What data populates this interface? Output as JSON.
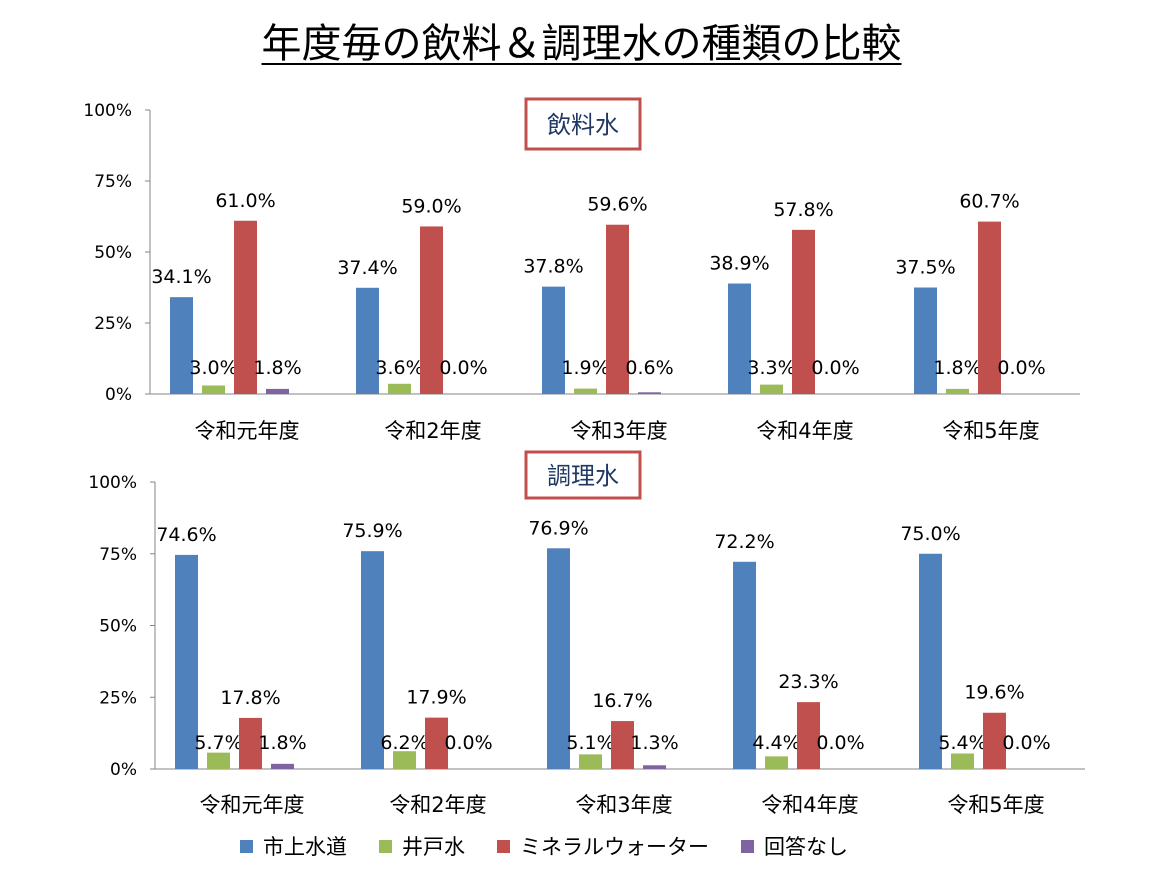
{
  "title": "年度毎の飲料＆調理水の種類の比較",
  "legend": [
    {
      "name": "市上水道",
      "color": "#4F81BD"
    },
    {
      "name": "井戸水",
      "color": "#9BBB59"
    },
    {
      "name": "ミネラルウォーター",
      "color": "#C0504D"
    },
    {
      "name": "回答なし",
      "color": "#8064A2"
    }
  ],
  "chart_data": [
    {
      "type": "bar",
      "title": "飲料水",
      "categories": [
        "令和元年度",
        "令和2年度",
        "令和3年度",
        "令和4年度",
        "令和5年度"
      ],
      "ylim": [
        0,
        100
      ],
      "yticks": [
        "0%",
        "25%",
        "50%",
        "75%",
        "100%"
      ],
      "series": [
        {
          "name": "市上水道",
          "values": [
            34.1,
            37.4,
            37.8,
            38.9,
            37.5
          ],
          "labels": [
            "34.1%",
            "37.4%",
            "37.8%",
            "38.9%",
            "37.5%"
          ]
        },
        {
          "name": "井戸水",
          "values": [
            3.0,
            3.6,
            1.9,
            3.3,
            1.8
          ],
          "labels": [
            "3.0%",
            "3.6%",
            "1.9%",
            "3.3%",
            "1.8%"
          ]
        },
        {
          "name": "ミネラルウォーター",
          "values": [
            61.0,
            59.0,
            59.6,
            57.8,
            60.7
          ],
          "labels": [
            "61.0%",
            "59.0%",
            "59.6%",
            "57.8%",
            "60.7%"
          ]
        },
        {
          "name": "回答なし",
          "values": [
            1.8,
            0.0,
            0.6,
            0.0,
            0.0
          ],
          "labels": [
            "1.8%",
            "0.0%",
            "0.6%",
            "0.0%",
            "0.0%"
          ]
        }
      ]
    },
    {
      "type": "bar",
      "title": "調理水",
      "categories": [
        "令和元年度",
        "令和2年度",
        "令和3年度",
        "令和4年度",
        "令和5年度"
      ],
      "ylim": [
        0,
        100
      ],
      "yticks": [
        "0%",
        "25%",
        "50%",
        "75%",
        "100%"
      ],
      "series": [
        {
          "name": "市上水道",
          "values": [
            74.6,
            75.9,
            76.9,
            72.2,
            75.0
          ],
          "labels": [
            "74.6%",
            "75.9%",
            "76.9%",
            "72.2%",
            "75.0%"
          ]
        },
        {
          "name": "井戸水",
          "values": [
            5.7,
            6.2,
            5.1,
            4.4,
            5.4
          ],
          "labels": [
            "5.7%",
            "6.2%",
            "5.1%",
            "4.4%",
            "5.4%"
          ]
        },
        {
          "name": "ミネラルウォーター",
          "values": [
            17.8,
            17.9,
            16.7,
            23.3,
            19.6
          ],
          "labels": [
            "17.8%",
            "17.9%",
            "16.7%",
            "23.3%",
            "19.6%"
          ]
        },
        {
          "name": "回答なし",
          "values": [
            1.8,
            0.0,
            1.3,
            0.0,
            0.0
          ],
          "labels": [
            "1.8%",
            "0.0%",
            "1.3%",
            "0.0%",
            "0.0%"
          ]
        }
      ]
    }
  ]
}
